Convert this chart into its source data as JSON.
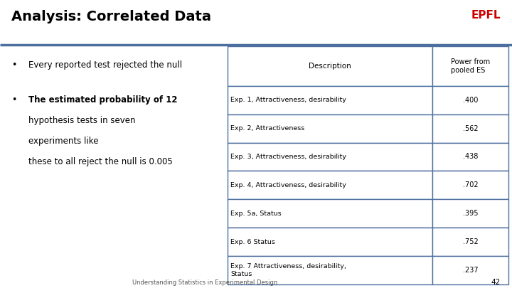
{
  "title": "Analysis: Correlated Data",
  "epfl_text": "EPFL",
  "epfl_color": "#cc0000",
  "title_color": "#000000",
  "title_fontsize": 14,
  "title_bar_color": "#4d6fa0",
  "bullet1": "Every reported test rejected the null",
  "bullet2_line1": "The estimated probability of 12",
  "bullet2_line2": "hypothesis tests in seven",
  "bullet2_line3": "experiments like",
  "bullet2_line4": "these to all reject the null is 0.005",
  "table_header": [
    "Description",
    "Power from\npooled ES"
  ],
  "table_rows": [
    [
      "Exp. 1, Attractiveness, desirability",
      ".400"
    ],
    [
      "Exp. 2, Attractiveness",
      ".562"
    ],
    [
      "Exp. 3, Attractiveness, desirability",
      ".438"
    ],
    [
      "Exp. 4, Attractiveness, desirability",
      ".702"
    ],
    [
      "Exp. 5a, Status",
      ".395"
    ],
    [
      "Exp. 6 Status",
      ".752"
    ],
    [
      "Exp. 7 Attractiveness, desirability,\nStatus",
      ".237"
    ]
  ],
  "footer_text": "Understanding Statistics in Experimental Design",
  "footer_page": "42",
  "table_border_color": "#4d6fa0",
  "background_color": "#ffffff"
}
